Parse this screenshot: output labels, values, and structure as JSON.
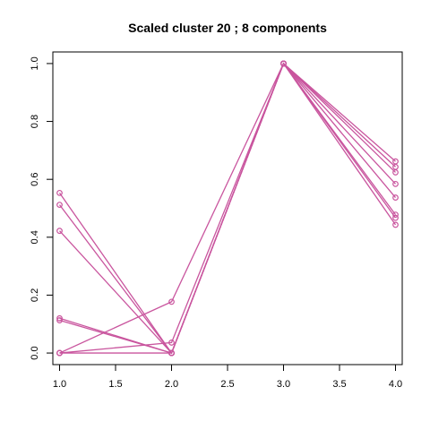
{
  "chart_data": {
    "type": "line",
    "title": "Scaled cluster 20 ; 8 components",
    "xlabel": "",
    "ylabel": "",
    "x": [
      1,
      2,
      3,
      4
    ],
    "xlim": [
      0.94,
      4.06
    ],
    "ylim": [
      -0.04,
      1.04
    ],
    "xticks": [
      1.0,
      1.5,
      2.0,
      2.5,
      3.0,
      3.5,
      4.0
    ],
    "xtick_labels": [
      "1.0",
      "1.5",
      "2.0",
      "2.5",
      "3.0",
      "3.5",
      "4.0"
    ],
    "yticks": [
      0.0,
      0.2,
      0.4,
      0.6,
      0.8,
      1.0
    ],
    "ytick_labels": [
      "0.0",
      "0.2",
      "0.4",
      "0.6",
      "0.8",
      "1.0"
    ],
    "grid": false,
    "color": "#c9559e",
    "series": [
      {
        "values": [
          0.553,
          0.0,
          1.0,
          0.662
        ]
      },
      {
        "values": [
          0.512,
          0.0,
          1.0,
          0.643
        ]
      },
      {
        "values": [
          0.422,
          0.0,
          1.0,
          0.624
        ]
      },
      {
        "values": [
          0.12,
          0.0,
          1.0,
          0.584
        ]
      },
      {
        "values": [
          0.113,
          0.0,
          1.0,
          0.537
        ]
      },
      {
        "values": [
          0.0,
          0.177,
          1.0,
          0.478
        ]
      },
      {
        "values": [
          0.0,
          0.036,
          1.0,
          0.467
        ]
      },
      {
        "values": [
          0.0,
          0.0,
          1.0,
          0.443
        ]
      }
    ]
  }
}
